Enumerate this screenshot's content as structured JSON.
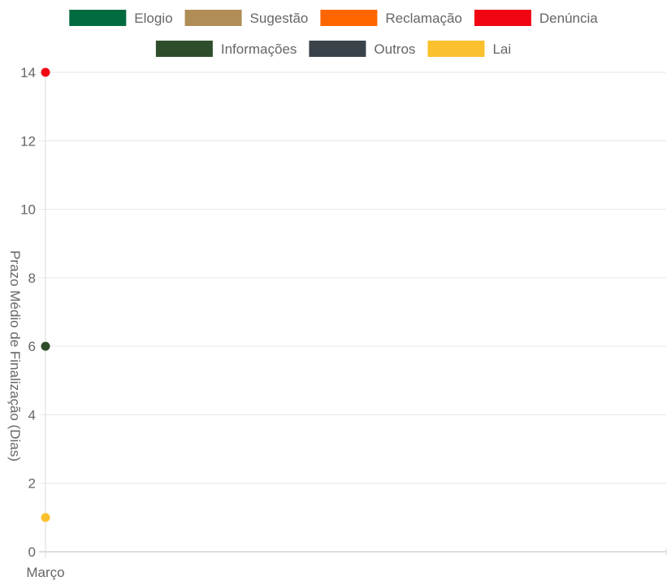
{
  "chart_data": {
    "type": "line",
    "categories": [
      "Março"
    ],
    "ylabel": "Prazo Médio de Finalização (Dias)",
    "ylim": [
      0,
      14
    ],
    "yticks": [
      0,
      2,
      4,
      6,
      8,
      10,
      12,
      14
    ],
    "grid": true,
    "legend_position": "top",
    "series": [
      {
        "name": "Elogio",
        "color": "#006b3f",
        "values": [
          null
        ]
      },
      {
        "name": "Sugestão",
        "color": "#b08d57",
        "values": [
          null
        ]
      },
      {
        "name": "Reclamação",
        "color": "#ff6600",
        "values": [
          null
        ]
      },
      {
        "name": "Denúncia",
        "color": "#f10513",
        "values": [
          14
        ]
      },
      {
        "name": "Informações",
        "color": "#2e4d2a",
        "values": [
          6
        ]
      },
      {
        "name": "Outros",
        "color": "#3a434a",
        "values": [
          null
        ]
      },
      {
        "name": "Lai",
        "color": "#fbc02d",
        "values": [
          1
        ]
      }
    ]
  }
}
